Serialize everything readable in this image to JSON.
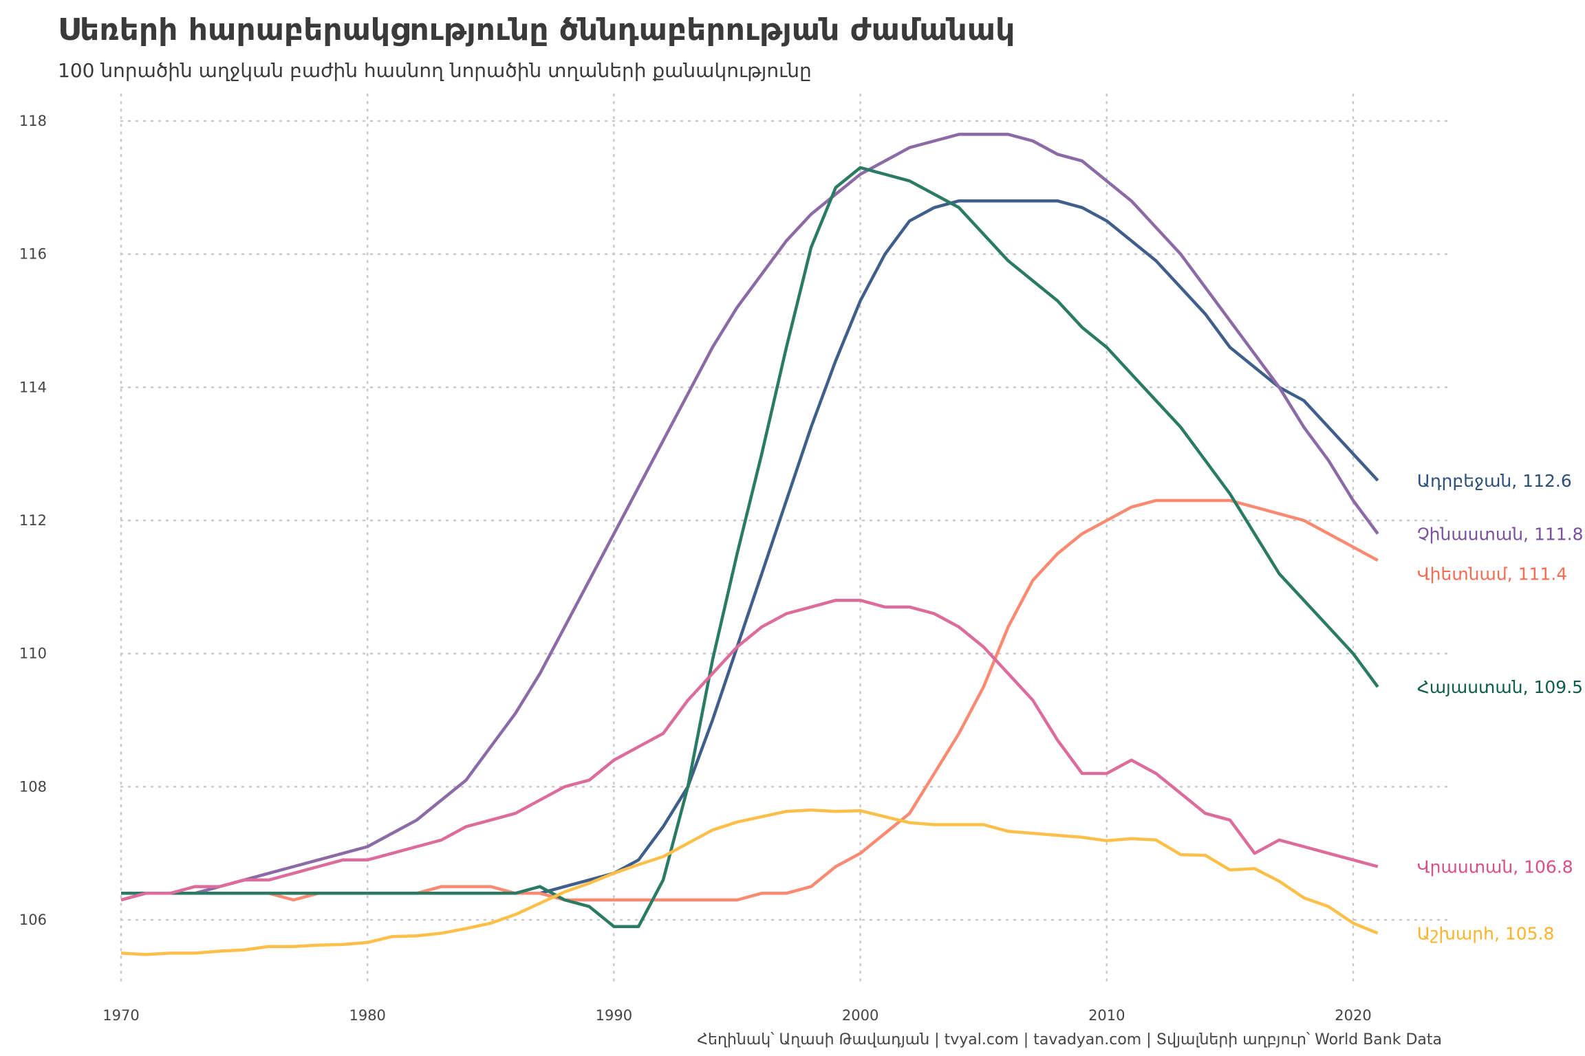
{
  "title": "Սեռերի հարաբերակցությունը ծննդաբերության ժամանակ",
  "subtitle": "100 նորածին աղջկան բաժին հասնող նորածին տղաների քանակությունը",
  "caption": "Հեղինակ՝ Աղասի Թավադյան   |   tvyal.com   |   tavadyan.com   |   Տվյալների աղբյուր՝ World Bank Data",
  "chart_data": {
    "type": "line",
    "title": "Սեռերի հարաբերակցությունը ծննդաբերության ժամանակ",
    "xlabel": "",
    "ylabel": "",
    "xlim": [
      1970,
      2024
    ],
    "ylim": [
      105,
      118.4
    ],
    "x_ticks": [
      1970,
      1980,
      1990,
      2000,
      2010,
      2020
    ],
    "y_ticks": [
      106,
      108,
      110,
      112,
      114,
      116,
      118
    ],
    "grid": true,
    "legend": "end-of-line labels",
    "x_start": 1970,
    "series": [
      {
        "name": "Ադրբեջան",
        "label": "Ադրբեջան, 112.6",
        "color": "#2b4f7a",
        "line_color": "#3f5f8a",
        "values": [
          106.4,
          106.4,
          106.4,
          106.4,
          106.4,
          106.4,
          106.4,
          106.4,
          106.4,
          106.4,
          106.4,
          106.4,
          106.4,
          106.4,
          106.4,
          106.4,
          106.4,
          106.4,
          106.5,
          106.6,
          106.7,
          106.9,
          107.4,
          108.0,
          109.0,
          110.1,
          111.2,
          112.3,
          113.4,
          114.4,
          115.3,
          116.0,
          116.5,
          116.7,
          116.8,
          116.8,
          116.8,
          116.8,
          116.8,
          116.7,
          116.5,
          116.2,
          115.9,
          115.5,
          115.1,
          114.6,
          114.3,
          114.0,
          113.8,
          113.4,
          113.0,
          112.6
        ]
      },
      {
        "name": "Չինաստան",
        "label": "Չինաստան, 111.8",
        "color": "#7a519c",
        "line_color": "#8c6aa6",
        "values": [
          106.3,
          106.4,
          106.4,
          106.4,
          106.5,
          106.6,
          106.7,
          106.8,
          106.9,
          107.0,
          107.1,
          107.3,
          107.5,
          107.8,
          108.1,
          108.6,
          109.1,
          109.7,
          110.4,
          111.1,
          111.8,
          112.5,
          113.2,
          113.9,
          114.6,
          115.2,
          115.7,
          116.2,
          116.6,
          116.9,
          117.2,
          117.4,
          117.6,
          117.7,
          117.8,
          117.8,
          117.8,
          117.7,
          117.5,
          117.4,
          117.1,
          116.8,
          116.4,
          116.0,
          115.5,
          115.0,
          114.5,
          114.0,
          113.4,
          112.9,
          112.3,
          111.8
        ]
      },
      {
        "name": "Վիետնամ",
        "label": "Վիետնամ, 111.4",
        "color": "#f96b52",
        "line_color": "#fa8a72",
        "values": [
          106.4,
          106.4,
          106.4,
          106.4,
          106.4,
          106.4,
          106.4,
          106.3,
          106.4,
          106.4,
          106.4,
          106.4,
          106.4,
          106.5,
          106.5,
          106.5,
          106.4,
          106.4,
          106.3,
          106.3,
          106.3,
          106.3,
          106.3,
          106.3,
          106.3,
          106.3,
          106.4,
          106.4,
          106.5,
          106.8,
          107.0,
          107.3,
          107.6,
          108.2,
          108.8,
          109.5,
          110.4,
          111.1,
          111.5,
          111.8,
          112.0,
          112.2,
          112.3,
          112.3,
          112.3,
          112.3,
          112.2,
          112.1,
          112.0,
          111.8,
          111.6,
          111.4
        ]
      },
      {
        "name": "Հայաստան",
        "label": "Հայաստան, 109.5",
        "color": "#0f5c4a",
        "line_color": "#2a7a64",
        "values": [
          106.4,
          106.4,
          106.4,
          106.4,
          106.4,
          106.4,
          106.4,
          106.4,
          106.4,
          106.4,
          106.4,
          106.4,
          106.4,
          106.4,
          106.4,
          106.4,
          106.4,
          106.5,
          106.3,
          106.2,
          105.9,
          105.9,
          106.6,
          108.0,
          109.9,
          111.5,
          113.0,
          114.6,
          116.1,
          117.0,
          117.3,
          117.2,
          117.1,
          116.9,
          116.7,
          116.3,
          115.9,
          115.6,
          115.3,
          114.9,
          114.6,
          114.2,
          113.8,
          113.4,
          112.9,
          112.4,
          111.8,
          111.2,
          110.8,
          110.4,
          110.0,
          109.5
        ]
      },
      {
        "name": "Վրաստան",
        "label": "Վրաստան, 106.8",
        "color": "#d94f86",
        "line_color": "#dc6c9c",
        "values": [
          106.3,
          106.4,
          106.4,
          106.5,
          106.5,
          106.6,
          106.6,
          106.7,
          106.8,
          106.9,
          106.9,
          107.0,
          107.1,
          107.2,
          107.4,
          107.5,
          107.6,
          107.8,
          108.0,
          108.1,
          108.4,
          108.6,
          108.8,
          109.3,
          109.7,
          110.1,
          110.4,
          110.6,
          110.7,
          110.8,
          110.8,
          110.7,
          110.7,
          110.6,
          110.4,
          110.1,
          109.7,
          109.3,
          108.7,
          108.2,
          108.2,
          108.4,
          108.2,
          107.9,
          107.6,
          107.5,
          107.0,
          107.2,
          107.1,
          107.0,
          106.9,
          106.8
        ]
      },
      {
        "name": "Աշխարհ",
        "label": "Աշխարհ, 105.8",
        "color": "#fbb32e",
        "line_color": "#fcc04a",
        "values": [
          105.5,
          105.48,
          105.5,
          105.5,
          105.53,
          105.55,
          105.6,
          105.6,
          105.62,
          105.63,
          105.66,
          105.75,
          105.76,
          105.8,
          105.87,
          105.95,
          106.08,
          106.25,
          106.42,
          106.55,
          106.7,
          106.83,
          106.95,
          107.15,
          107.35,
          107.47,
          107.55,
          107.63,
          107.65,
          107.63,
          107.64,
          107.55,
          107.46,
          107.43,
          107.43,
          107.43,
          107.33,
          107.3,
          107.27,
          107.24,
          107.19,
          107.22,
          107.2,
          106.98,
          106.97,
          106.75,
          106.77,
          106.58,
          106.33,
          106.2,
          105.95,
          105.8
        ]
      }
    ]
  }
}
